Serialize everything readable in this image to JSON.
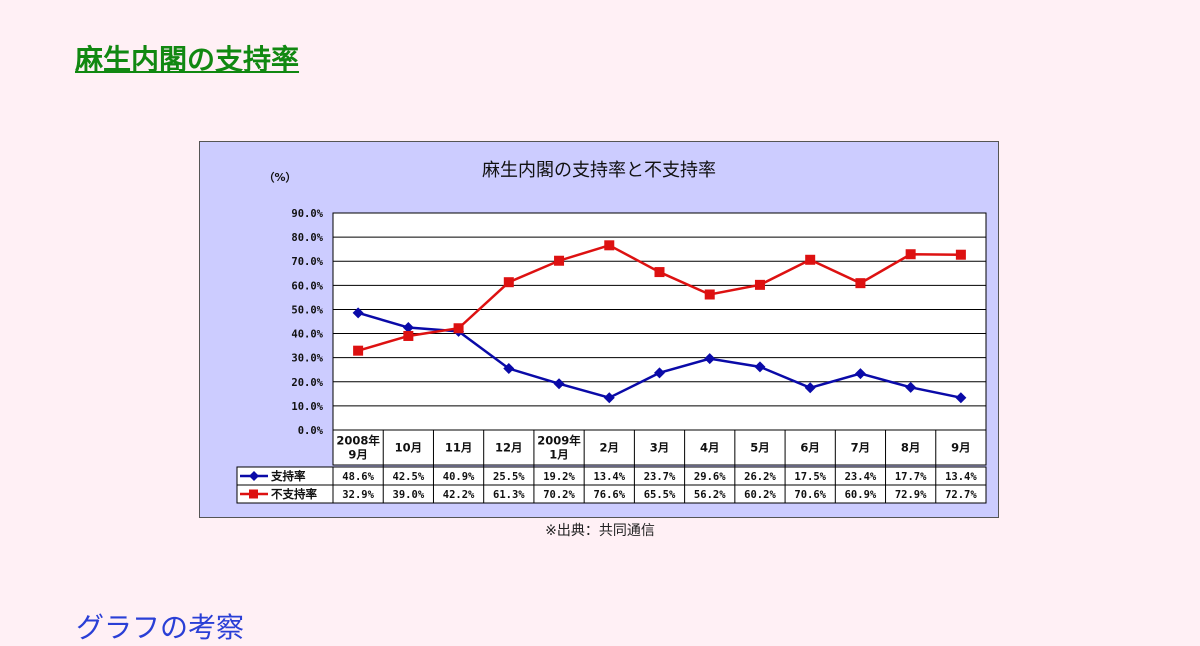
{
  "page": {
    "title": "麻生内閣の支持率",
    "source_note": "※出典：共同通信",
    "section_heading": "グラフの考察"
  },
  "chart_data": {
    "type": "line",
    "title": "麻生内閣の支持率と不支持率",
    "ylabel": "（%）",
    "ylim": [
      0,
      90
    ],
    "yticks": [
      0,
      10,
      20,
      30,
      40,
      50,
      60,
      70,
      80,
      90
    ],
    "ytick_labels": [
      "0.0%",
      "10.0%",
      "20.0%",
      "30.0%",
      "40.0%",
      "50.0%",
      "60.0%",
      "70.0%",
      "80.0%",
      "90.0%"
    ],
    "grid": true,
    "categories": [
      "2008年\n9月",
      "10月",
      "11月",
      "12月",
      "2009年\n1月",
      "2月",
      "3月",
      "4月",
      "5月",
      "6月",
      "7月",
      "8月",
      "9月"
    ],
    "series": [
      {
        "name": "支持率",
        "color": "#0a0aa8",
        "marker": "diamond",
        "values": [
          48.6,
          42.5,
          40.9,
          25.5,
          19.2,
          13.4,
          23.7,
          29.6,
          26.2,
          17.5,
          23.4,
          17.7,
          13.4
        ],
        "labels": [
          "48.6%",
          "42.5%",
          "40.9%",
          "25.5%",
          "19.2%",
          "13.4%",
          "23.7%",
          "29.6%",
          "26.2%",
          "17.5%",
          "23.4%",
          "17.7%",
          "13.4%"
        ]
      },
      {
        "name": "不支持率",
        "color": "#dd1111",
        "marker": "square",
        "values": [
          32.9,
          39.0,
          42.2,
          61.3,
          70.2,
          76.6,
          65.5,
          56.2,
          60.2,
          70.6,
          60.9,
          72.9,
          72.7
        ],
        "labels": [
          "32.9%",
          "39.0%",
          "42.2%",
          "61.3%",
          "70.2%",
          "76.6%",
          "65.5%",
          "56.2%",
          "60.2%",
          "70.6%",
          "60.9%",
          "72.9%",
          "72.7%"
        ]
      }
    ]
  }
}
